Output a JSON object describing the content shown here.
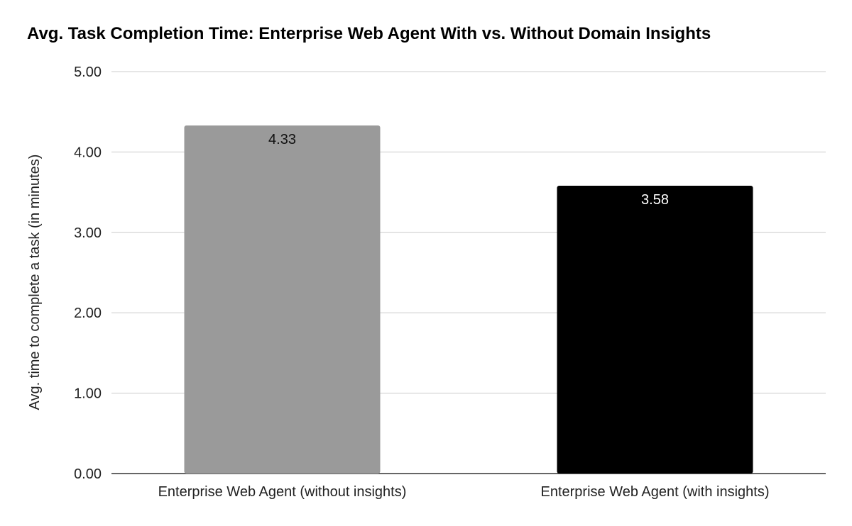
{
  "chart_data": {
    "type": "bar",
    "title": "Avg. Task Completion Time: Enterprise Web Agent With vs. Without Domain Insights",
    "xlabel": "",
    "ylabel": "Avg. time to complete a task (in minutes)",
    "ylim": [
      0,
      5
    ],
    "yticks": [
      "0.00",
      "1.00",
      "2.00",
      "3.00",
      "4.00",
      "5.00"
    ],
    "grid": true,
    "categories": [
      "Enterprise Web Agent (without insights)",
      "Enterprise Web Agent (with insights)"
    ],
    "values": [
      4.33,
      3.58
    ],
    "data_labels": [
      "4.33",
      "3.58"
    ],
    "bar_colors": [
      "#9a9a9a",
      "#000000"
    ],
    "label_colors": [
      "#111111",
      "#ffffff"
    ],
    "gridline_color": "#cccccc",
    "axis_color": "#333333"
  }
}
